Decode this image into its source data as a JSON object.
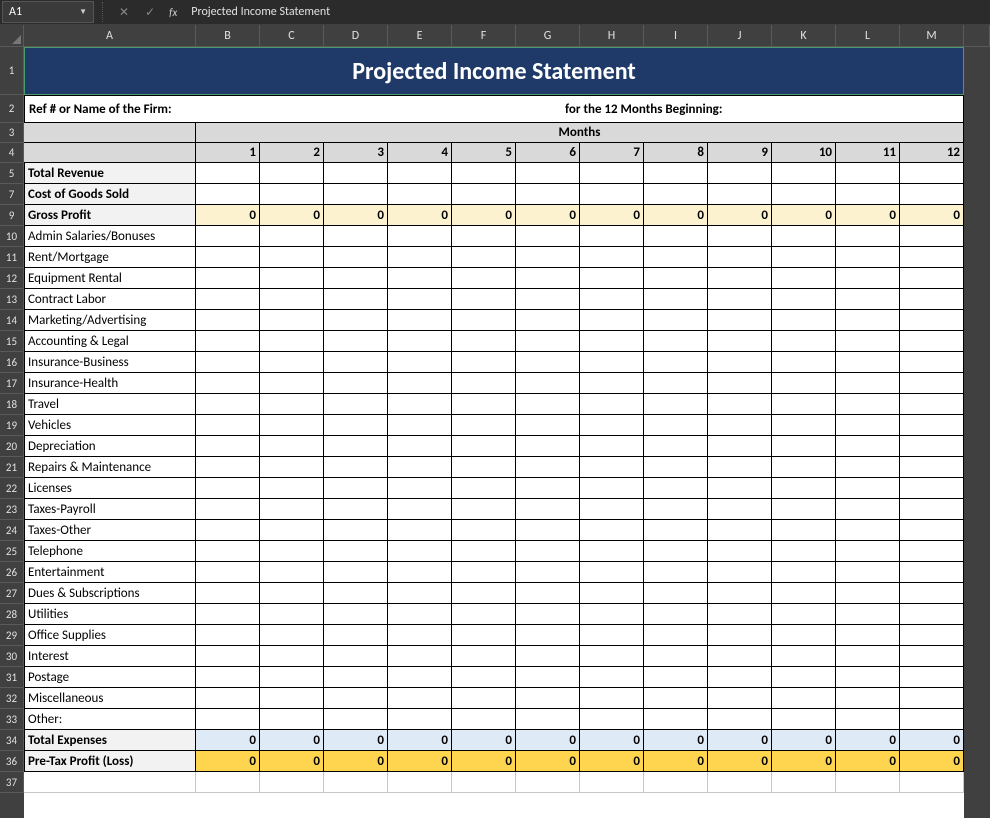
{
  "formula_bar": {
    "cell_ref": "A1",
    "fx_label": "fx",
    "value": "Projected Income Statement"
  },
  "columns": [
    "A",
    "B",
    "C",
    "D",
    "E",
    "F",
    "G",
    "H",
    "I",
    "J",
    "K",
    "L",
    "M"
  ],
  "col_widths": {
    "A": 172,
    "other": 64,
    "remainder": 26
  },
  "row_heights": {
    "title": 48,
    "header2": 28,
    "header3": 20,
    "header4": 20,
    "data": 21
  },
  "title": "Projected Income Statement",
  "header2": {
    "left": "Ref # or Name of the Firm:",
    "right": "for the 12 Months Beginning:"
  },
  "months_label": "Months",
  "month_numbers": [
    1,
    2,
    3,
    4,
    5,
    6,
    7,
    8,
    9,
    10,
    11,
    12
  ],
  "rows": [
    {
      "n": 5,
      "label": "Total Revenue",
      "type": "bold_gray",
      "values": null
    },
    {
      "n": 7,
      "label": "Cost of Goods Sold",
      "type": "bold_gray",
      "values": null
    },
    {
      "n": 9,
      "label": "Gross Profit",
      "type": "gross",
      "values": [
        0,
        0,
        0,
        0,
        0,
        0,
        0,
        0,
        0,
        0,
        0,
        0
      ]
    },
    {
      "n": 10,
      "label": "Admin Salaries/Bonuses",
      "type": "plain",
      "values": null
    },
    {
      "n": 11,
      "label": "Rent/Mortgage",
      "type": "plain",
      "values": null
    },
    {
      "n": 12,
      "label": "Equipment Rental",
      "type": "plain",
      "values": null
    },
    {
      "n": 13,
      "label": "Contract Labor",
      "type": "plain",
      "values": null
    },
    {
      "n": 14,
      "label": "Marketing/Advertising",
      "type": "plain",
      "values": null
    },
    {
      "n": 15,
      "label": "Accounting & Legal",
      "type": "plain",
      "values": null
    },
    {
      "n": 16,
      "label": "Insurance-Business",
      "type": "plain",
      "values": null
    },
    {
      "n": 17,
      "label": "Insurance-Health",
      "type": "plain",
      "values": null
    },
    {
      "n": 18,
      "label": "Travel",
      "type": "plain",
      "values": null
    },
    {
      "n": 19,
      "label": "Vehicles",
      "type": "plain",
      "values": null
    },
    {
      "n": 20,
      "label": "Depreciation",
      "type": "plain",
      "values": null
    },
    {
      "n": 21,
      "label": "Repairs & Maintenance",
      "type": "plain",
      "values": null
    },
    {
      "n": 22,
      "label": "Licenses",
      "type": "plain",
      "values": null
    },
    {
      "n": 23,
      "label": "Taxes-Payroll",
      "type": "plain",
      "values": null
    },
    {
      "n": 24,
      "label": "Taxes-Other",
      "type": "plain",
      "values": null
    },
    {
      "n": 25,
      "label": "Telephone",
      "type": "plain",
      "values": null
    },
    {
      "n": 26,
      "label": "Entertainment",
      "type": "plain",
      "values": null
    },
    {
      "n": 27,
      "label": "Dues & Subscriptions",
      "type": "plain",
      "values": null
    },
    {
      "n": 28,
      "label": "Utilities",
      "type": "plain",
      "values": null
    },
    {
      "n": 29,
      "label": "Office Supplies",
      "type": "plain",
      "values": null
    },
    {
      "n": 30,
      "label": "Interest",
      "type": "plain",
      "values": null
    },
    {
      "n": 31,
      "label": "Postage",
      "type": "plain",
      "values": null
    },
    {
      "n": 32,
      "label": "Miscellaneous",
      "type": "plain",
      "values": null
    },
    {
      "n": 33,
      "label": "Other:",
      "type": "plain",
      "values": null
    },
    {
      "n": 34,
      "label": "Total Expenses",
      "type": "total_exp",
      "values": [
        0,
        0,
        0,
        0,
        0,
        0,
        0,
        0,
        0,
        0,
        0,
        0
      ]
    },
    {
      "n": 36,
      "label": "Pre-Tax Profit (Loss)",
      "type": "pretax",
      "values": [
        0,
        0,
        0,
        0,
        0,
        0,
        0,
        0,
        0,
        0,
        0,
        0
      ]
    },
    {
      "n": 37,
      "label": "",
      "type": "empty",
      "values": null
    }
  ],
  "colors": {
    "title_bg": "#1f3a68",
    "gray_bg": "#d9d9d9",
    "cream_bg": "#fdf2d0",
    "lightblue_bg": "#deebf7",
    "gold_bg": "#ffd54f",
    "dark_bg": "#404040"
  }
}
